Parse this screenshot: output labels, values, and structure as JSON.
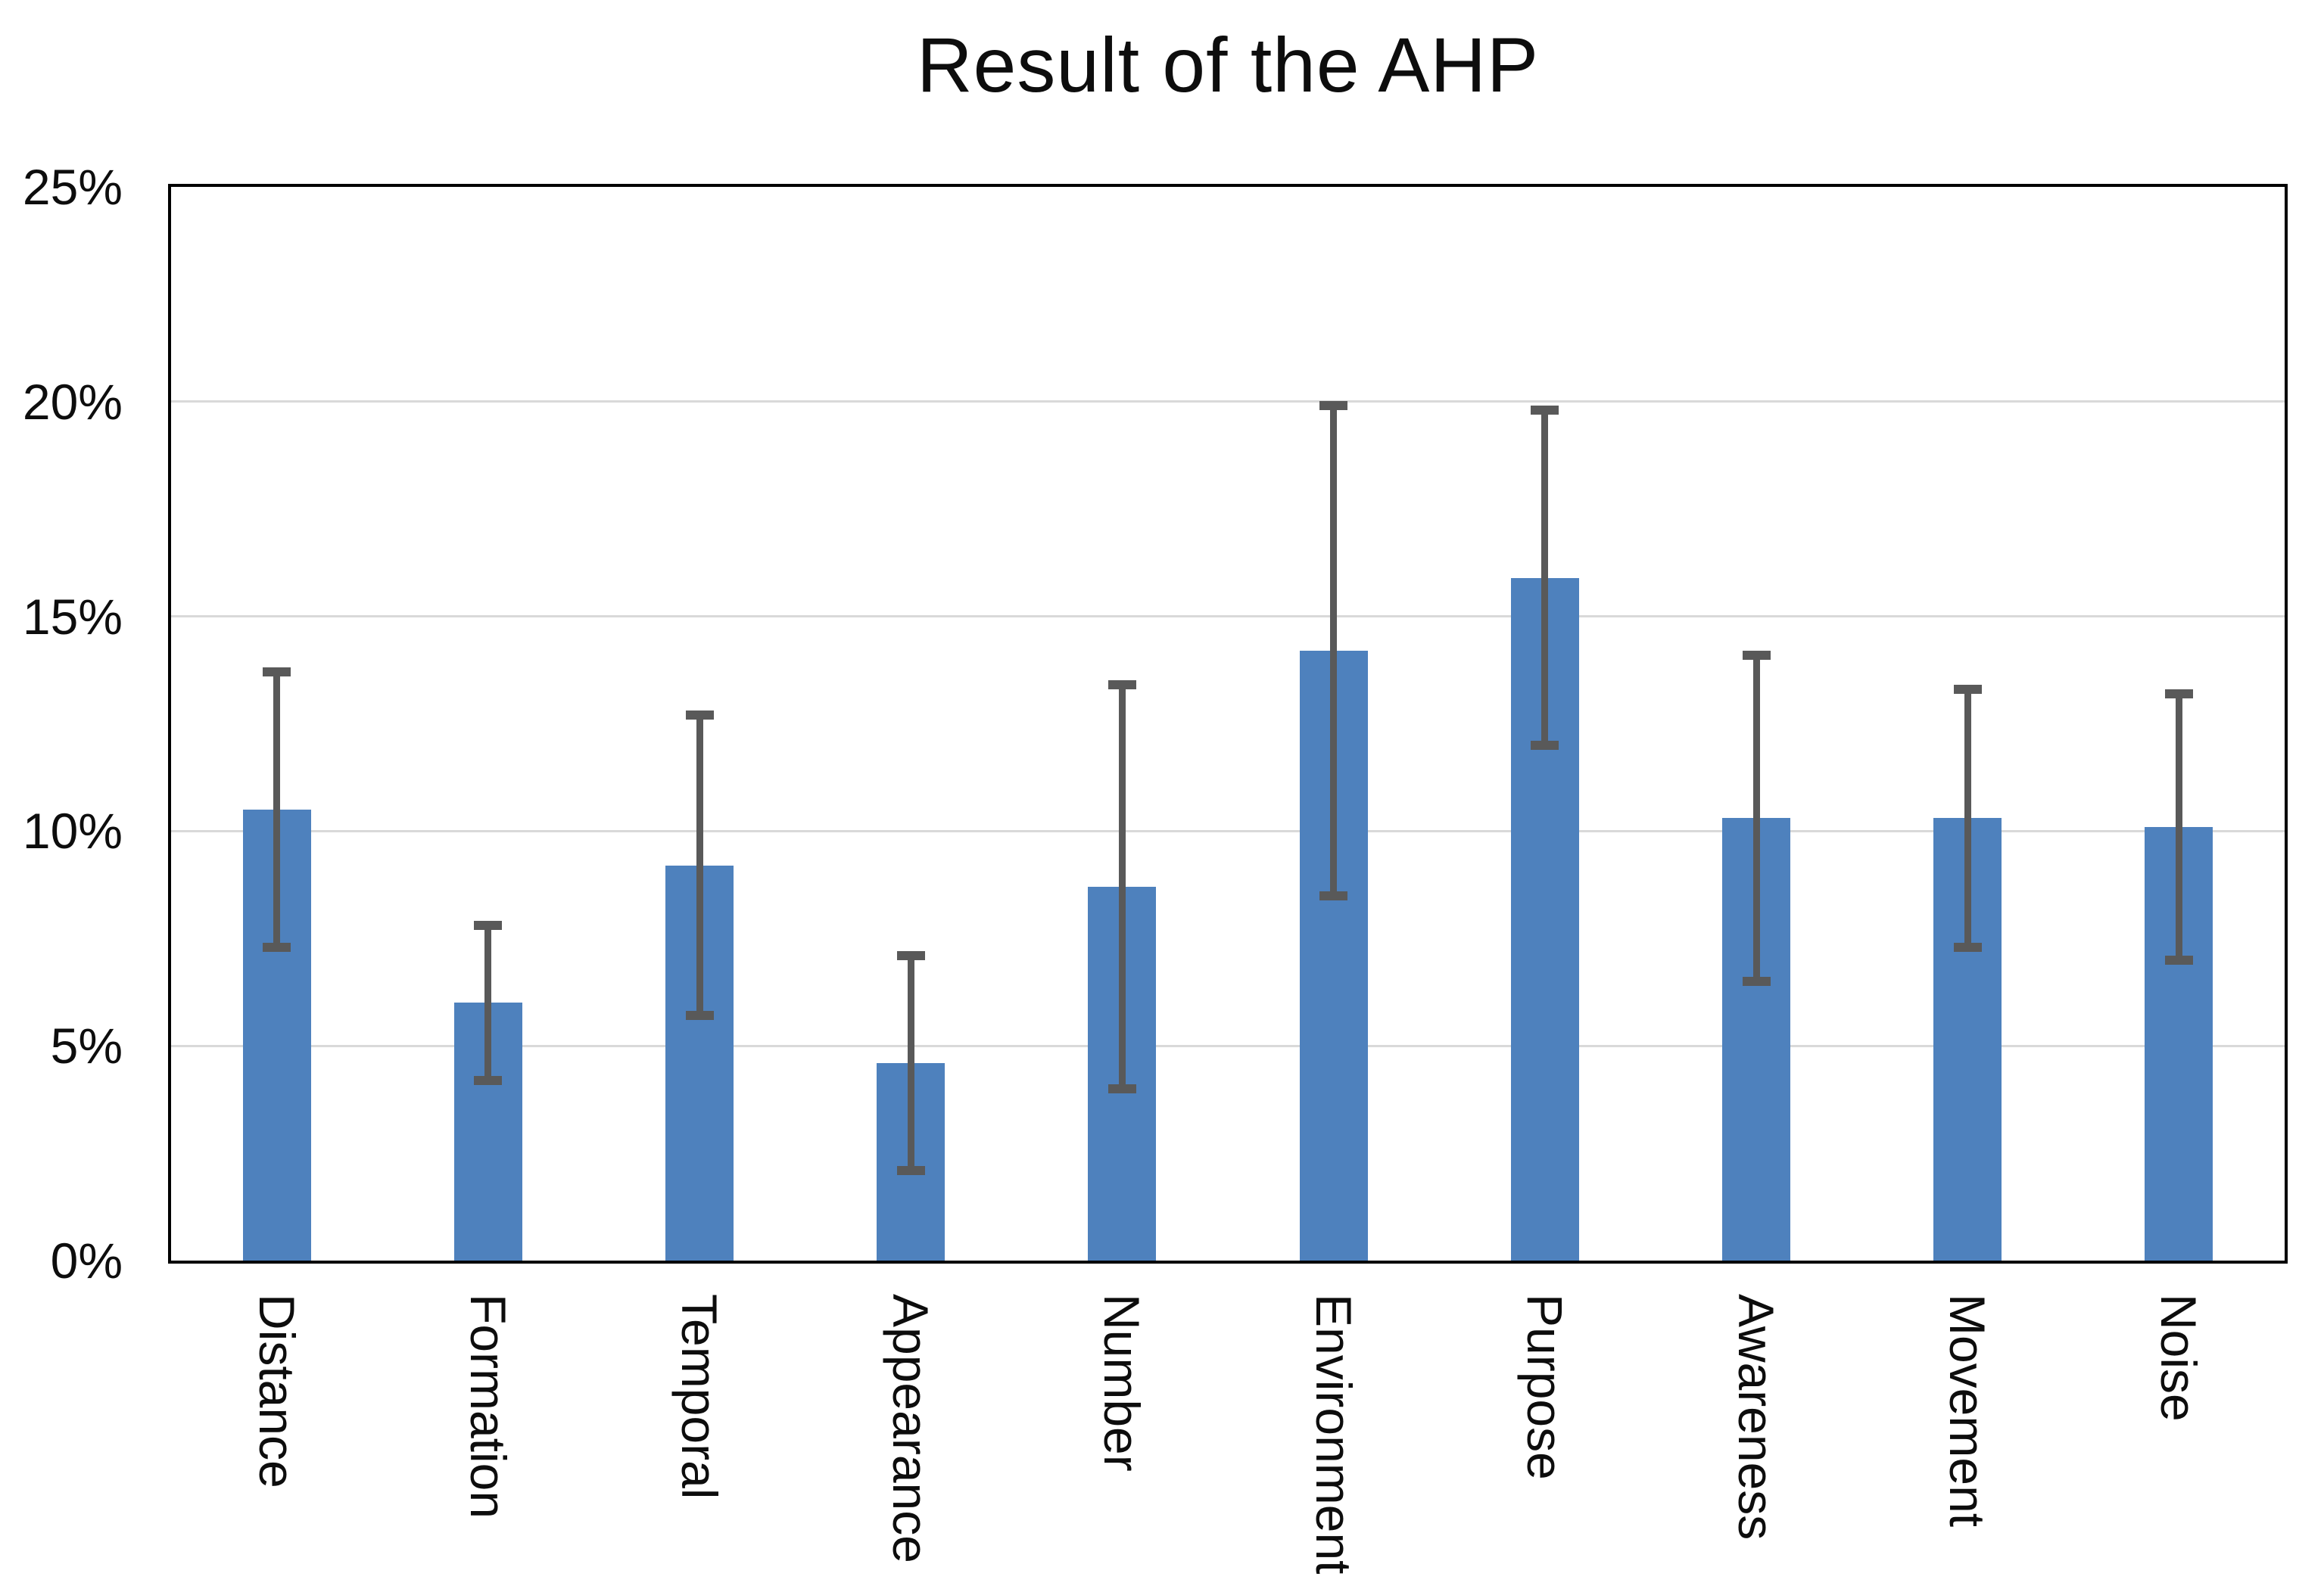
{
  "title": "Result of the AHP",
  "chart_data": {
    "type": "bar",
    "title": "Result of the AHP",
    "categories": [
      "Distance",
      "Formation",
      "Temporal",
      "Appearance",
      "Number",
      "Environment",
      "Purpose",
      "Awareness",
      "Movement",
      "Noise"
    ],
    "values": [
      10.5,
      6.0,
      9.2,
      4.6,
      8.7,
      14.2,
      15.9,
      10.3,
      10.3,
      10.1
    ],
    "error_high": [
      13.7,
      7.8,
      12.7,
      7.1,
      13.4,
      19.9,
      19.8,
      14.1,
      13.3,
      13.2
    ],
    "error_low": [
      7.3,
      4.2,
      5.7,
      2.1,
      4.0,
      8.5,
      12.0,
      6.5,
      7.3,
      7.0
    ],
    "xlabel": "",
    "ylabel": "",
    "ylim": [
      0,
      25
    ],
    "ytick_values": [
      0,
      5,
      10,
      15,
      20,
      25
    ],
    "ytick_labels": [
      "0%",
      "5%",
      "10%",
      "15%",
      "20%",
      "25%"
    ],
    "grid": "horizontal",
    "legend": "none",
    "bar_color": "#4E81BD",
    "error_bar_color": "#595959",
    "gridline_color": "#D9D9D9",
    "axis_color": "#000000",
    "background_color": "#FFFFFF"
  }
}
